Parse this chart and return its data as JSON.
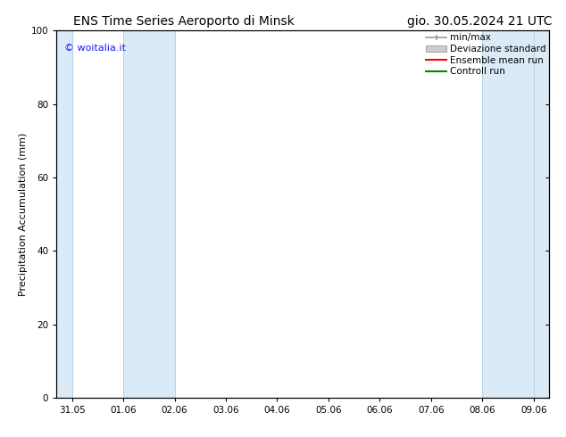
{
  "title_left": "ENS Time Series Aeroporto di Minsk",
  "title_right": "gio. 30.05.2024 21 UTC",
  "ylabel": "Precipitation Accumulation (mm)",
  "ylim": [
    0,
    100
  ],
  "yticks": [
    0,
    20,
    40,
    60,
    80,
    100
  ],
  "x_tick_labels": [
    "31.05",
    "01.06",
    "02.06",
    "03.06",
    "04.06",
    "05.06",
    "06.06",
    "07.06",
    "08.06",
    "09.06"
  ],
  "x_tick_positions": [
    0,
    1,
    2,
    3,
    4,
    5,
    6,
    7,
    8,
    9
  ],
  "xlim": [
    -0.3,
    9.3
  ],
  "shaded_bands": [
    {
      "x_start": -0.3,
      "x_end": 0.0,
      "color": "#dbeaf7"
    },
    {
      "x_start": 1.0,
      "x_end": 2.0,
      "color": "#dbeaf7"
    },
    {
      "x_start": 8.0,
      "x_end": 9.0,
      "color": "#dbeaf7"
    },
    {
      "x_start": 9.0,
      "x_end": 9.3,
      "color": "#dbeaf7"
    }
  ],
  "vertical_line_color": "#b8d4e8",
  "background_color": "#ffffff",
  "plot_bg_color": "#ffffff",
  "watermark_text": "© woitalia.it",
  "watermark_color": "#1a1aff",
  "legend_entries": [
    {
      "label": "min/max",
      "color": "#999999",
      "style": "errorbar"
    },
    {
      "label": "Deviazione standard",
      "color": "#cccccc",
      "style": "bar"
    },
    {
      "label": "Ensemble mean run",
      "color": "#ff0000",
      "style": "line"
    },
    {
      "label": "Controll run",
      "color": "#008800",
      "style": "line"
    }
  ],
  "font_size_title": 10,
  "font_size_labels": 8,
  "font_size_ticks": 7.5,
  "font_size_legend": 7.5,
  "font_size_watermark": 8
}
